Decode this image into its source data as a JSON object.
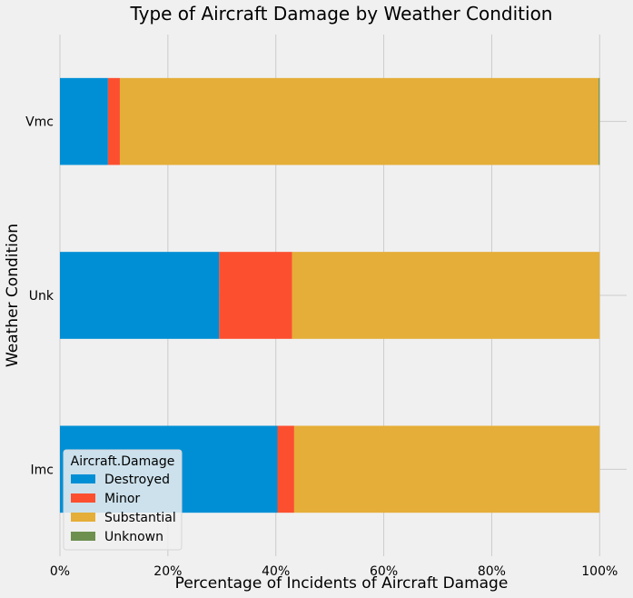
{
  "chart_data": {
    "type": "bar",
    "orientation": "horizontal",
    "stacked": true,
    "title": "Type of Aircraft Damage by Weather Condition",
    "xlabel": "Percentage of Incidents of Aircraft Damage",
    "ylabel": "Weather Condition",
    "categories": [
      "Imc",
      "Unk",
      "Vmc"
    ],
    "xlim": [
      0,
      1.05
    ],
    "x_ticks": [
      0,
      0.2,
      0.4,
      0.6,
      0.8,
      1.0
    ],
    "x_tick_labels": [
      "0%",
      "20%",
      "40%",
      "60%",
      "80%",
      "100%"
    ],
    "grid": true,
    "series": [
      {
        "name": "Destroyed",
        "color": "#008fd5",
        "values": [
          0.403,
          0.295,
          0.089
        ]
      },
      {
        "name": "Minor",
        "color": "#fc4f30",
        "values": [
          0.031,
          0.135,
          0.022
        ]
      },
      {
        "name": "Substantial",
        "color": "#e5ae38",
        "values": [
          0.566,
          0.57,
          0.887
        ]
      },
      {
        "name": "Unknown",
        "color": "#6d904f",
        "values": [
          0.0,
          0.0,
          0.002
        ]
      }
    ],
    "legend": {
      "title": "Aircraft.Damage",
      "placement": "lower-left"
    }
  }
}
